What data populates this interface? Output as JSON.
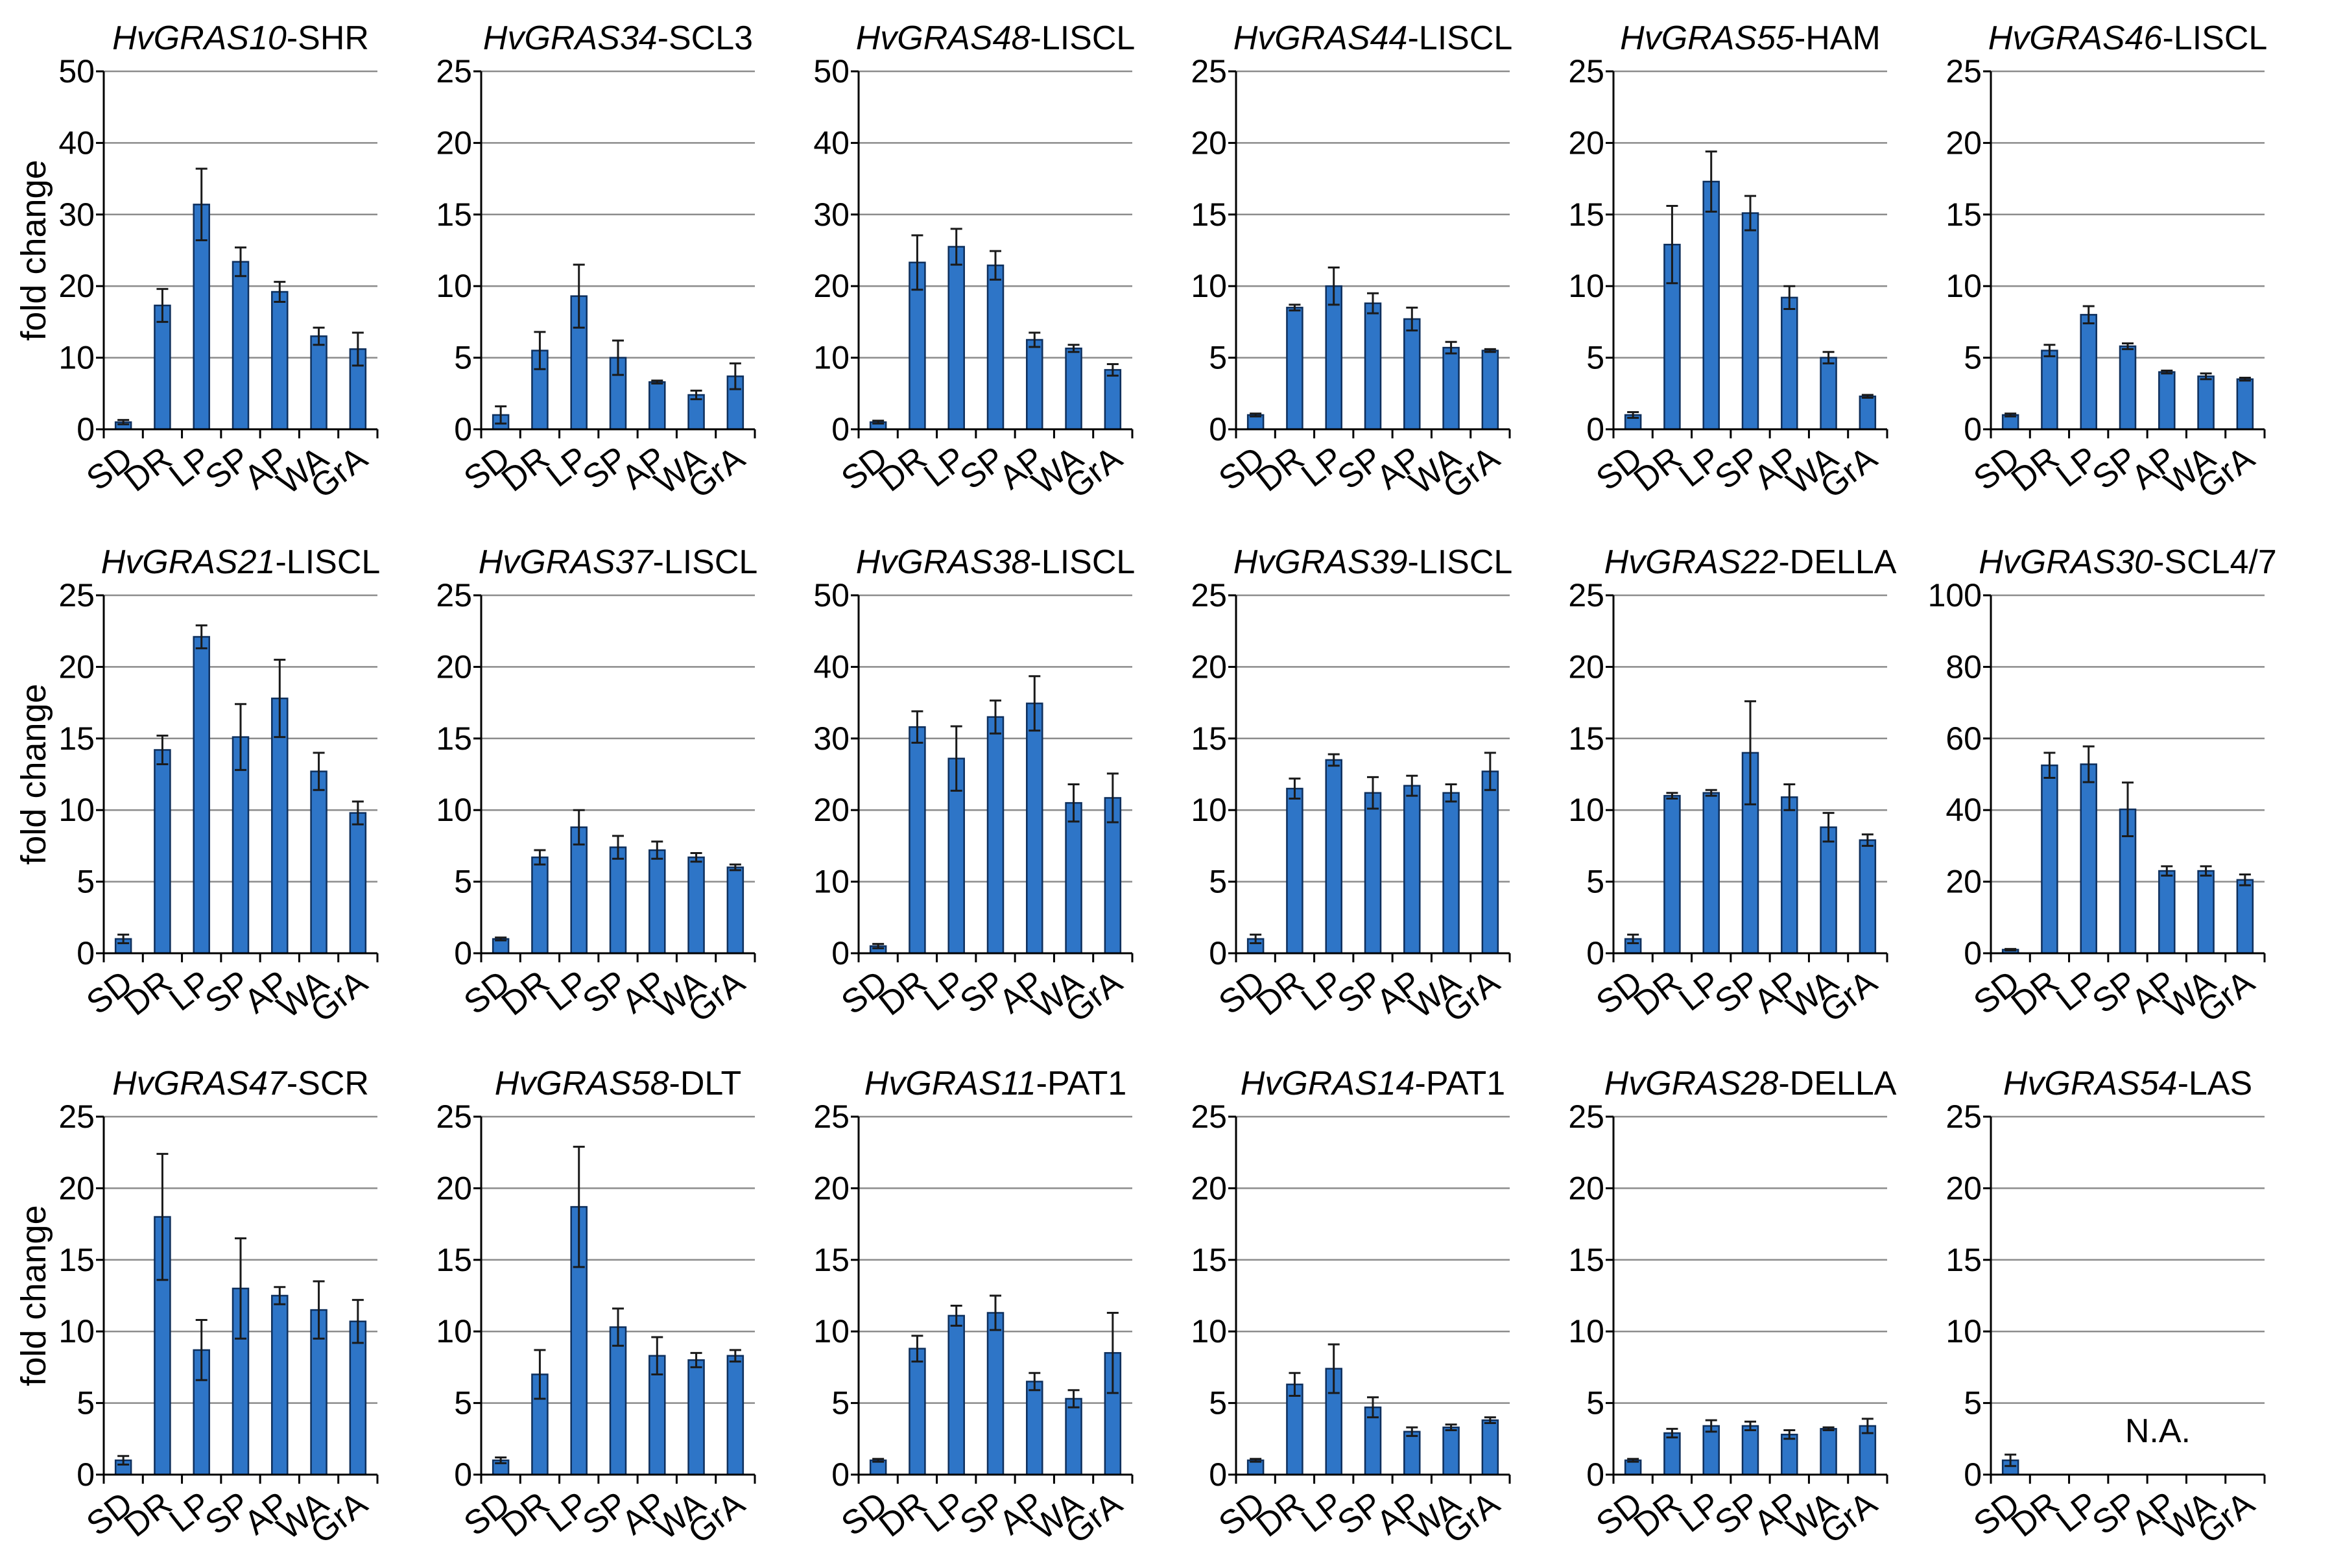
{
  "figure": {
    "ylabel": "fold change",
    "categories": [
      "SD",
      "DR",
      "LP",
      "SP",
      "AP",
      "WA",
      "GrA"
    ],
    "bar_color": "#2E75C7",
    "bar_edge": "#0E2F5C",
    "grid_color": "#8c8c8c",
    "axis_color": "#000000"
  },
  "chart_data": [
    {
      "type": "bar",
      "title_gene": "HvGRAS10",
      "title_family": "-SHR",
      "ylim": [
        0,
        50
      ],
      "yticks": [
        0,
        10,
        20,
        30,
        40,
        50
      ],
      "values": [
        1.0,
        17.3,
        31.4,
        23.4,
        19.2,
        13.0,
        11.2
      ],
      "errors": [
        0.3,
        2.3,
        5.0,
        2.0,
        1.4,
        1.2,
        2.3
      ]
    },
    {
      "type": "bar",
      "title_gene": "HvGRAS34",
      "title_family": "-SCL3",
      "ylim": [
        0,
        25
      ],
      "yticks": [
        0,
        5,
        10,
        15,
        20,
        25
      ],
      "values": [
        1.0,
        5.5,
        9.3,
        5.0,
        3.3,
        2.4,
        3.7
      ],
      "errors": [
        0.6,
        1.3,
        2.2,
        1.2,
        0.1,
        0.3,
        0.9
      ]
    },
    {
      "type": "bar",
      "title_gene": "HvGRAS48",
      "title_family": "-LISCL",
      "ylim": [
        0,
        50
      ],
      "yticks": [
        0,
        10,
        20,
        30,
        40,
        50
      ],
      "values": [
        1.0,
        23.3,
        25.5,
        22.9,
        12.5,
        11.3,
        8.3
      ],
      "errors": [
        0.2,
        3.8,
        2.5,
        2.0,
        1.0,
        0.5,
        0.8
      ]
    },
    {
      "type": "bar",
      "title_gene": "HvGRAS44",
      "title_family": "-LISCL",
      "ylim": [
        0,
        25
      ],
      "yticks": [
        0,
        5,
        10,
        15,
        20,
        25
      ],
      "values": [
        1.0,
        8.5,
        10.0,
        8.8,
        7.7,
        5.7,
        5.5
      ],
      "errors": [
        0.1,
        0.2,
        1.3,
        0.7,
        0.8,
        0.4,
        0.1
      ]
    },
    {
      "type": "bar",
      "title_gene": "HvGRAS55",
      "title_family": "-HAM",
      "ylim": [
        0,
        25
      ],
      "yticks": [
        0,
        5,
        10,
        15,
        20,
        25
      ],
      "values": [
        1.0,
        12.9,
        17.3,
        15.1,
        9.2,
        5.0,
        2.3
      ],
      "errors": [
        0.2,
        2.7,
        2.1,
        1.2,
        0.8,
        0.4,
        0.1
      ]
    },
    {
      "type": "bar",
      "title_gene": "HvGRAS46",
      "title_family": "-LISCL",
      "ylim": [
        0,
        25
      ],
      "yticks": [
        0,
        5,
        10,
        15,
        20,
        25
      ],
      "values": [
        1.0,
        5.5,
        8.0,
        5.8,
        4.0,
        3.7,
        3.5
      ],
      "errors": [
        0.1,
        0.4,
        0.6,
        0.2,
        0.1,
        0.2,
        0.1
      ]
    },
    {
      "type": "bar",
      "title_gene": "HvGRAS21",
      "title_family": "-LISCL",
      "ylim": [
        0,
        25
      ],
      "yticks": [
        0,
        5,
        10,
        15,
        20,
        25
      ],
      "values": [
        1.0,
        14.2,
        22.1,
        15.1,
        17.8,
        12.7,
        9.8
      ],
      "errors": [
        0.3,
        1.0,
        0.8,
        2.3,
        2.7,
        1.3,
        0.8
      ]
    },
    {
      "type": "bar",
      "title_gene": "HvGRAS37",
      "title_family": "-LISCL",
      "ylim": [
        0,
        25
      ],
      "yticks": [
        0,
        5,
        10,
        15,
        20,
        25
      ],
      "values": [
        1.0,
        6.7,
        8.8,
        7.4,
        7.2,
        6.7,
        6.0
      ],
      "errors": [
        0.1,
        0.5,
        1.2,
        0.8,
        0.6,
        0.3,
        0.2
      ]
    },
    {
      "type": "bar",
      "title_gene": "HvGRAS38",
      "title_family": "-LISCL",
      "ylim": [
        0,
        50
      ],
      "yticks": [
        0,
        10,
        20,
        30,
        40,
        50
      ],
      "values": [
        1.0,
        31.6,
        27.2,
        33.0,
        34.9,
        21.0,
        21.7
      ],
      "errors": [
        0.3,
        2.2,
        4.5,
        2.3,
        3.8,
        2.6,
        3.4
      ]
    },
    {
      "type": "bar",
      "title_gene": "HvGRAS39",
      "title_family": "-LISCL",
      "ylim": [
        0,
        25
      ],
      "yticks": [
        0,
        5,
        10,
        15,
        20,
        25
      ],
      "values": [
        1.0,
        11.5,
        13.5,
        11.2,
        11.7,
        11.2,
        12.7
      ],
      "errors": [
        0.3,
        0.7,
        0.4,
        1.1,
        0.7,
        0.6,
        1.3
      ]
    },
    {
      "type": "bar",
      "title_gene": "HvGRAS22",
      "title_family": "-DELLA",
      "ylim": [
        0,
        25
      ],
      "yticks": [
        0,
        5,
        10,
        15,
        20,
        25
      ],
      "values": [
        1.0,
        11.0,
        11.2,
        14.0,
        10.9,
        8.8,
        7.9
      ],
      "errors": [
        0.3,
        0.2,
        0.2,
        3.6,
        0.9,
        1.0,
        0.4
      ]
    },
    {
      "type": "bar",
      "title_gene": "HvGRAS30",
      "title_family": "-SCL4/7",
      "ylim": [
        0,
        100
      ],
      "yticks": [
        0,
        20,
        40,
        60,
        80,
        100
      ],
      "values": [
        1.0,
        52.5,
        52.8,
        40.2,
        23.0,
        23.0,
        20.5
      ],
      "errors": [
        0.2,
        3.5,
        5.0,
        7.5,
        1.3,
        1.3,
        1.5
      ]
    },
    {
      "type": "bar",
      "title_gene": "HvGRAS47",
      "title_family": "-SCR",
      "ylim": [
        0,
        25
      ],
      "yticks": [
        0,
        5,
        10,
        15,
        20,
        25
      ],
      "values": [
        1.0,
        18.0,
        8.7,
        13.0,
        12.5,
        11.5,
        10.7
      ],
      "errors": [
        0.3,
        4.4,
        2.1,
        3.5,
        0.6,
        2.0,
        1.5
      ]
    },
    {
      "type": "bar",
      "title_gene": "HvGRAS58",
      "title_family": "-DLT",
      "ylim": [
        0,
        25
      ],
      "yticks": [
        0,
        5,
        10,
        15,
        20,
        25
      ],
      "values": [
        1.0,
        7.0,
        18.7,
        10.3,
        8.3,
        8.0,
        8.3
      ],
      "errors": [
        0.2,
        1.7,
        4.2,
        1.3,
        1.3,
        0.5,
        0.4
      ]
    },
    {
      "type": "bar",
      "title_gene": "HvGRAS11",
      "title_family": "-PAT1",
      "ylim": [
        0,
        25
      ],
      "yticks": [
        0,
        5,
        10,
        15,
        20,
        25
      ],
      "values": [
        1.0,
        8.8,
        11.1,
        11.3,
        6.5,
        5.3,
        8.5
      ],
      "errors": [
        0.1,
        0.9,
        0.7,
        1.2,
        0.6,
        0.6,
        2.8
      ]
    },
    {
      "type": "bar",
      "title_gene": "HvGRAS14",
      "title_family": "-PAT1",
      "ylim": [
        0,
        25
      ],
      "yticks": [
        0,
        5,
        10,
        15,
        20,
        25
      ],
      "values": [
        1.0,
        6.3,
        7.4,
        4.7,
        3.0,
        3.3,
        3.8
      ],
      "errors": [
        0.1,
        0.8,
        1.7,
        0.7,
        0.3,
        0.2,
        0.2
      ]
    },
    {
      "type": "bar",
      "title_gene": "HvGRAS28",
      "title_family": "-DELLA",
      "ylim": [
        0,
        25
      ],
      "yticks": [
        0,
        5,
        10,
        15,
        20,
        25
      ],
      "values": [
        1.0,
        2.9,
        3.4,
        3.4,
        2.8,
        3.2,
        3.4
      ],
      "errors": [
        0.1,
        0.3,
        0.4,
        0.3,
        0.3,
        0.1,
        0.5
      ]
    },
    {
      "type": "bar",
      "title_gene": "HvGRAS54",
      "title_family": "-LAS",
      "ylim": [
        0,
        25
      ],
      "yticks": [
        0,
        5,
        10,
        15,
        20,
        25
      ],
      "values": [
        1.0,
        0,
        0,
        0,
        0,
        0,
        0
      ],
      "errors": [
        0.4,
        0,
        0,
        0,
        0,
        0,
        0
      ],
      "annotation": "N.A."
    }
  ]
}
